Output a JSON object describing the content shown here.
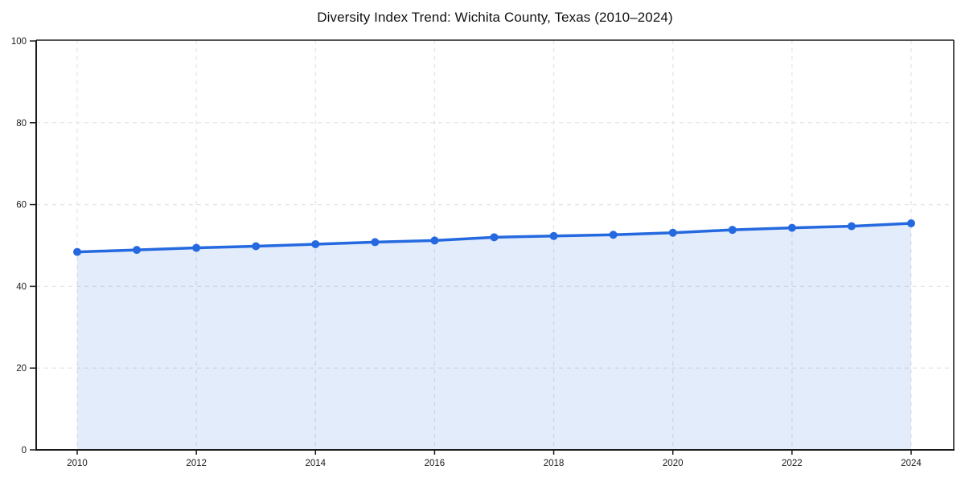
{
  "chart_data": {
    "type": "area",
    "title": "Diversity Index Trend: Wichita County, Texas (2010–2024)",
    "x": [
      2010,
      2011,
      2012,
      2013,
      2014,
      2015,
      2016,
      2017,
      2018,
      2019,
      2020,
      2021,
      2022,
      2023,
      2024
    ],
    "series": [
      {
        "name": "Diversity Index",
        "values": [
          48.4,
          48.9,
          49.4,
          49.8,
          50.3,
          50.8,
          51.2,
          52.0,
          52.3,
          52.6,
          53.1,
          53.8,
          54.3,
          54.7,
          55.4
        ]
      }
    ],
    "xticks": [
      2010,
      2012,
      2014,
      2016,
      2018,
      2020,
      2022,
      2024
    ],
    "yticks": [
      0,
      20,
      40,
      60,
      80,
      100
    ],
    "xlim": [
      2010,
      2024
    ],
    "ylim": [
      0,
      100
    ],
    "xlabel": "",
    "ylabel": "",
    "legend": false,
    "grid": "dashed",
    "marker": "circle",
    "colors": {
      "line": "#2569e0",
      "marker": "#2569e0",
      "fill": "rgba(37, 105, 224, 0.13)",
      "grid": "#e4e4e4",
      "axis": "#1a1a1a",
      "tick_label": "#1c1c1c",
      "title": "#111111",
      "background": "#ffffff"
    }
  }
}
